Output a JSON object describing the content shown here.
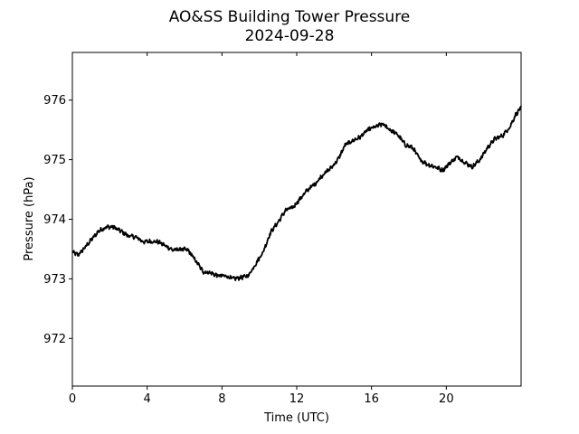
{
  "chart_data": {
    "type": "line",
    "title": "AO&SS Building Tower Pressure",
    "subtitle": "2024-09-28",
    "xlabel": "Time (UTC)",
    "ylabel": "Pressure (hPa)",
    "xlim": [
      0,
      24
    ],
    "ylim": [
      971.2,
      976.8
    ],
    "xticks": [
      0,
      4,
      8,
      12,
      16,
      20
    ],
    "xtick_labels": [
      "0",
      "4",
      "8",
      "12",
      "16",
      "20"
    ],
    "yticks": [
      972,
      973,
      974,
      975,
      976
    ],
    "ytick_labels": [
      "972",
      "973",
      "974",
      "975",
      "976"
    ],
    "grid": false,
    "line_color": "#000000",
    "series": [
      {
        "x": [
          0,
          0.3,
          0.6,
          1.0,
          1.4,
          1.8,
          2.2,
          2.6,
          3.0,
          3.4,
          3.8,
          4.2,
          4.6,
          5.0,
          5.4,
          5.8,
          6.2,
          6.6,
          7.0,
          7.4,
          7.8,
          8.2,
          8.6,
          9.0,
          9.4,
          9.8,
          10.2,
          10.6,
          11.0,
          11.4,
          11.8,
          12.2,
          12.6,
          13.0,
          13.4,
          13.8,
          14.2,
          14.6,
          15.0,
          15.4,
          15.8,
          16.2,
          16.6,
          17.0,
          17.4,
          17.8,
          18.2,
          18.6,
          19.0,
          19.4,
          19.8,
          20.2,
          20.6,
          21.0,
          21.4,
          21.8,
          22.2,
          22.6,
          23.0,
          23.4,
          23.7,
          24.0
        ],
        "values": [
          973.45,
          973.4,
          973.5,
          973.65,
          973.8,
          973.87,
          973.87,
          973.8,
          973.72,
          973.7,
          973.62,
          973.63,
          973.62,
          973.55,
          973.48,
          973.5,
          973.48,
          973.3,
          973.12,
          973.1,
          973.05,
          973.05,
          973.0,
          973.02,
          973.05,
          973.25,
          973.45,
          973.78,
          973.95,
          974.15,
          974.2,
          974.35,
          974.5,
          974.6,
          974.75,
          974.85,
          975.0,
          975.25,
          975.32,
          975.38,
          975.5,
          975.55,
          975.6,
          975.5,
          975.42,
          975.25,
          975.2,
          975.0,
          974.92,
          974.88,
          974.82,
          974.95,
          975.05,
          974.95,
          974.88,
          975.0,
          975.2,
          975.35,
          975.4,
          975.55,
          975.75,
          975.88
        ]
      }
    ]
  }
}
